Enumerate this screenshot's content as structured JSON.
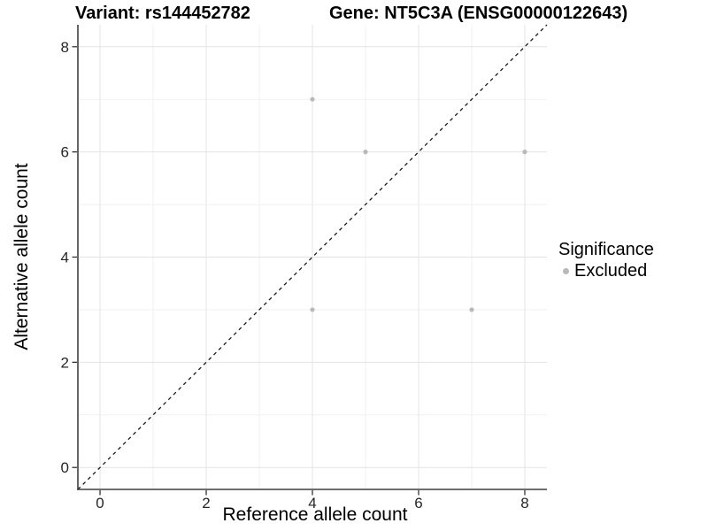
{
  "titles": {
    "variant": "Variant: rs144452782",
    "gene": "Gene: NT5C3A (ENSG00000122643)"
  },
  "legend": {
    "title": "Significance",
    "items": [
      {
        "label": "Excluded",
        "color": "#b9b9b9"
      }
    ]
  },
  "chart_data": {
    "type": "scatter",
    "title": "Variant: rs144452782   Gene: NT5C3A (ENSG00000122643)",
    "xlabel": "Reference allele count",
    "ylabel": "Alternative allele count",
    "xlim": [
      -0.417,
      8.417
    ],
    "ylim": [
      -0.417,
      8.417
    ],
    "x_major_ticks": [
      0,
      2,
      4,
      6,
      8
    ],
    "y_major_ticks": [
      0,
      2,
      4,
      6,
      8
    ],
    "x_minor_ticks": [
      1,
      3,
      5,
      7
    ],
    "y_minor_ticks": [
      1,
      3,
      5,
      7
    ],
    "grid": true,
    "legend_position": "right",
    "series": [
      {
        "name": "Excluded",
        "color": "#b9b9b9",
        "points": [
          {
            "x": 4,
            "y": 7
          },
          {
            "x": 5,
            "y": 6
          },
          {
            "x": 8,
            "y": 6
          },
          {
            "x": 4,
            "y": 3
          },
          {
            "x": 7,
            "y": 3
          }
        ]
      }
    ],
    "reference_line": {
      "type": "identity",
      "style": "dashed"
    },
    "colors": {
      "point": "#b9b9b9",
      "grid_major": "#e4e4e4",
      "grid_minor": "#f1f1f1",
      "axis_line": "#3f3f3f",
      "tick_mark": "#333333",
      "tick_label": "#262626",
      "dashed_line": "#1a1a1a",
      "text": "#000000"
    }
  }
}
